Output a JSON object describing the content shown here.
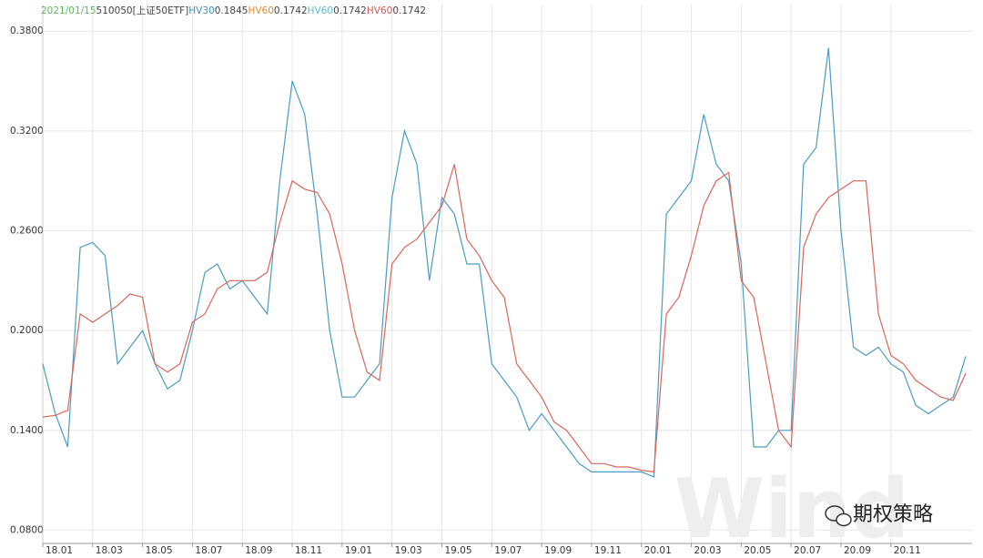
{
  "chart_data": {
    "type": "line",
    "header": {
      "date": "2021/01/15",
      "code": "510050[上证50ETF]",
      "items": [
        {
          "name": "HV30",
          "color": "#3f8fc0",
          "value": 0.1845
        },
        {
          "name": "HV60",
          "color": "#e8892f",
          "value": 0.1742
        },
        {
          "name": "HV60",
          "color": "#5bbbd0",
          "value": 0.1742
        },
        {
          "name": "HV60",
          "color": "#d9534f",
          "value": 0.1742
        }
      ]
    },
    "watermark": {
      "brand": "Wind",
      "account": "期权策略"
    },
    "categories": [
      "18.01",
      null,
      null,
      null,
      "18.03",
      null,
      null,
      null,
      "18.05",
      null,
      null,
      null,
      "18.07",
      null,
      null,
      null,
      "18.09",
      null,
      null,
      null,
      "18.11",
      null,
      null,
      null,
      "19.01",
      null,
      null,
      null,
      "19.03",
      null,
      null,
      null,
      "19.05",
      null,
      null,
      null,
      "19.07",
      null,
      null,
      null,
      "19.09",
      null,
      null,
      null,
      "19.11",
      null,
      null,
      null,
      "20.01",
      null,
      null,
      null,
      "20.03",
      null,
      null,
      null,
      "20.05",
      null,
      null,
      null,
      "20.07",
      null,
      null,
      null,
      "20.09",
      null,
      null,
      null,
      "20.11",
      null,
      null,
      null,
      null,
      null,
      null
    ],
    "series": [
      {
        "name": "HV30",
        "color": "#4a9cc0",
        "values": [
          0.18,
          0.15,
          0.13,
          0.25,
          0.253,
          0.245,
          0.18,
          0.19,
          0.2,
          0.18,
          0.165,
          0.17,
          0.2,
          0.235,
          0.24,
          0.225,
          0.23,
          0.22,
          0.21,
          0.29,
          0.35,
          0.33,
          0.27,
          0.2,
          0.16,
          0.16,
          0.17,
          0.18,
          0.28,
          0.32,
          0.3,
          0.23,
          0.28,
          0.27,
          0.24,
          0.24,
          0.18,
          0.17,
          0.16,
          0.14,
          0.15,
          0.14,
          0.13,
          0.12,
          0.115,
          0.115,
          0.115,
          0.115,
          0.115,
          0.112,
          0.27,
          0.28,
          0.29,
          0.33,
          0.3,
          0.29,
          0.24,
          0.13,
          0.13,
          0.14,
          0.14,
          0.3,
          0.31,
          0.37,
          0.26,
          0.19,
          0.185,
          0.19,
          0.18,
          0.175,
          0.155,
          0.15,
          0.155,
          0.16,
          0.1845
        ]
      },
      {
        "name": "HV60",
        "color": "#d9665a",
        "values": [
          0.148,
          0.149,
          0.152,
          0.21,
          0.205,
          0.21,
          0.215,
          0.222,
          0.22,
          0.18,
          0.175,
          0.18,
          0.205,
          0.21,
          0.225,
          0.23,
          0.23,
          0.23,
          0.235,
          0.265,
          0.29,
          0.285,
          0.283,
          0.27,
          0.24,
          0.2,
          0.175,
          0.17,
          0.24,
          0.25,
          0.255,
          0.265,
          0.275,
          0.3,
          0.255,
          0.245,
          0.23,
          0.22,
          0.18,
          0.17,
          0.16,
          0.145,
          0.14,
          0.13,
          0.12,
          0.12,
          0.118,
          0.118,
          0.116,
          0.115,
          0.21,
          0.22,
          0.245,
          0.275,
          0.29,
          0.295,
          0.23,
          0.22,
          0.18,
          0.14,
          0.13,
          0.25,
          0.27,
          0.28,
          0.285,
          0.29,
          0.29,
          0.21,
          0.185,
          0.18,
          0.17,
          0.165,
          0.16,
          0.158,
          0.1742
        ]
      }
    ],
    "ylim": [
      0.072,
      0.396
    ],
    "yticks": [
      {
        "value": 0.08,
        "label": "0.0800"
      },
      {
        "value": 0.14,
        "label": "0.1400"
      },
      {
        "value": 0.2,
        "label": "0.2000"
      },
      {
        "value": 0.26,
        "label": "0.2600"
      },
      {
        "value": 0.32,
        "label": "0.3200"
      },
      {
        "value": 0.38,
        "label": "0.3800"
      }
    ],
    "grid": true
  }
}
